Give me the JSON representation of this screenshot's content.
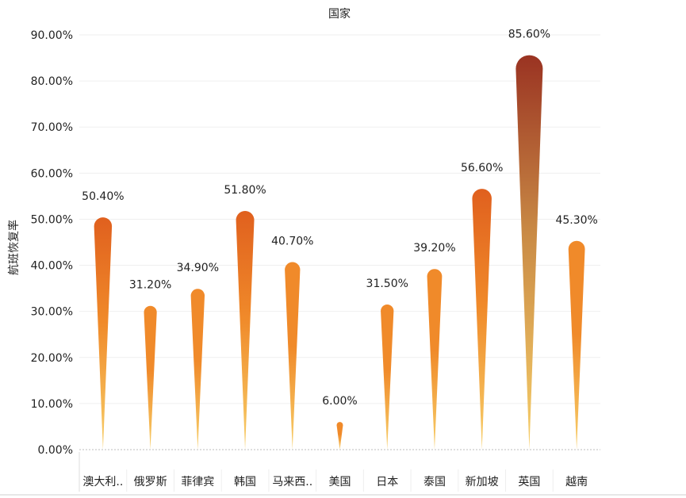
{
  "chart_data": {
    "type": "bar",
    "title": "国家",
    "xlabel": "",
    "ylabel": "航班恢复率",
    "categories": [
      "澳大利..",
      "俄罗斯",
      "菲律宾",
      "韩国",
      "马来西..",
      "美国",
      "日本",
      "泰国",
      "新加坡",
      "英国",
      "越南"
    ],
    "values": [
      50.4,
      31.2,
      34.9,
      51.8,
      40.7,
      6.0,
      31.5,
      39.2,
      56.6,
      85.6,
      45.3
    ],
    "value_labels": [
      "50.40%",
      "31.20%",
      "34.90%",
      "51.80%",
      "40.70%",
      "6.00%",
      "31.50%",
      "39.20%",
      "56.60%",
      "85.60%",
      "45.30%"
    ],
    "y_ticks": [
      "0.00%",
      "10.00%",
      "20.00%",
      "30.00%",
      "40.00%",
      "50.00%",
      "60.00%",
      "70.00%",
      "80.00%",
      "90.00%"
    ],
    "ylim": [
      0,
      90
    ],
    "grid": true,
    "colors": {
      "low": "#f7cf6a",
      "mid": "#f08a2a",
      "high": "#e0601e",
      "top": "#9a3322"
    }
  }
}
